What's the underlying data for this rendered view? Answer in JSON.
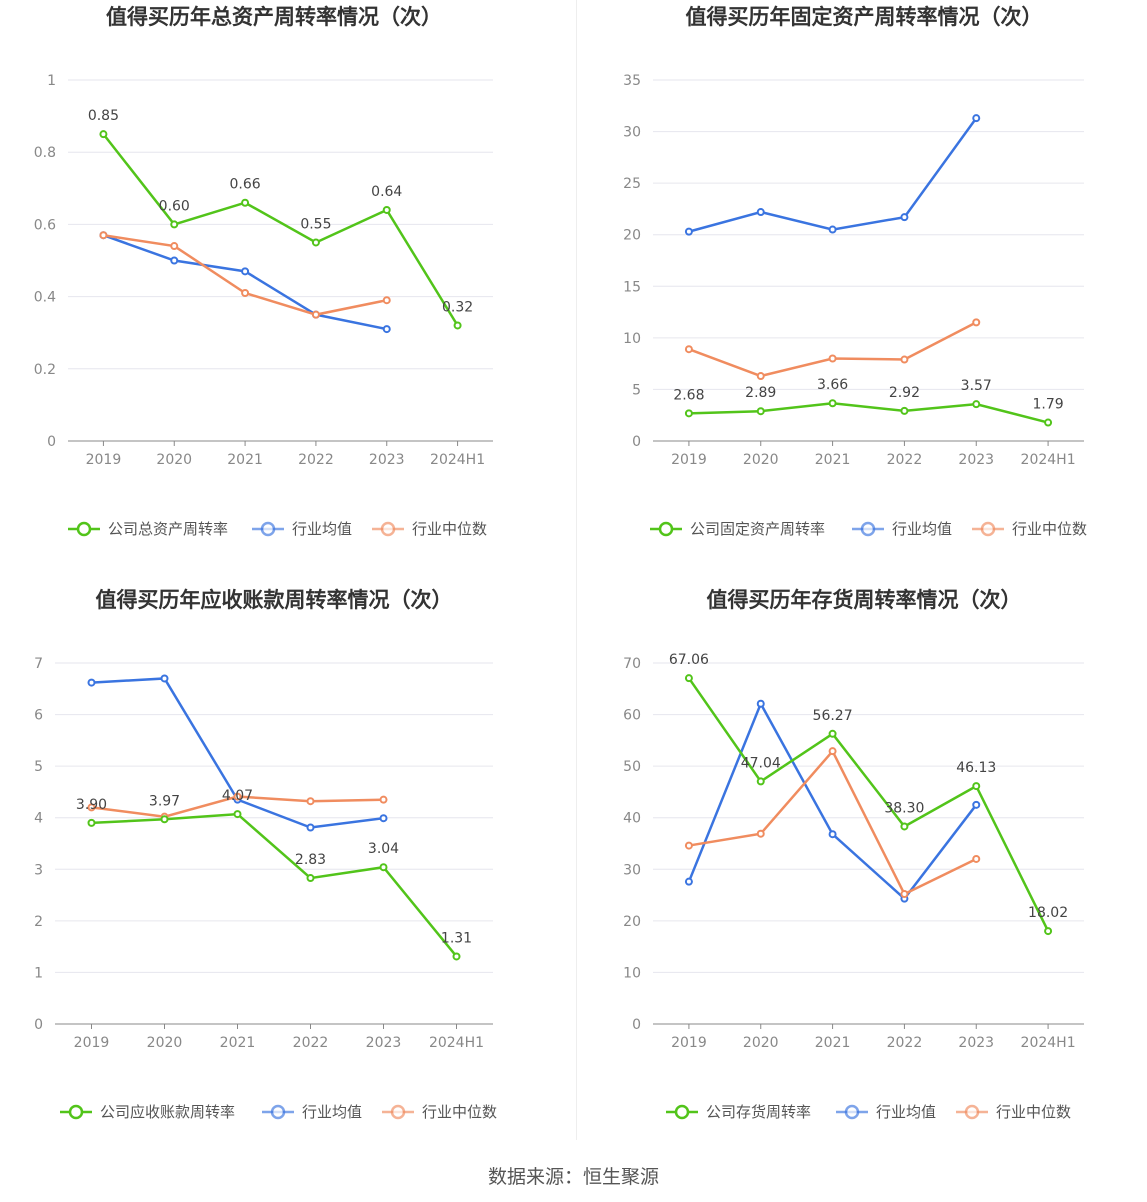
{
  "footer": {
    "source": "数据来源：恒生聚源"
  },
  "chart_data": [
    {
      "type": "line",
      "title": "值得买历年总资产周转率情况（次）",
      "categories": [
        "2019",
        "2020",
        "2021",
        "2022",
        "2023",
        "2024H1"
      ],
      "yticks": [
        "0",
        "0.2",
        "0.4",
        "0.6",
        "0.8",
        "1"
      ],
      "ylim": [
        0,
        1
      ],
      "series": [
        {
          "name": "公司总资产周转率",
          "color": "#52c41a",
          "values": [
            0.85,
            0.6,
            0.66,
            0.55,
            0.64,
            0.32
          ],
          "labels": [
            "0.85",
            "0.60",
            "0.66",
            "0.55",
            "0.64",
            "0.32"
          ]
        },
        {
          "name": "行业均值",
          "color": "#3a74e0",
          "values": [
            0.57,
            0.5,
            0.47,
            0.35,
            0.31,
            null
          ]
        },
        {
          "name": "行业中位数",
          "color": "#f08c5f",
          "values": [
            0.57,
            0.54,
            0.41,
            0.35,
            0.39,
            null
          ]
        }
      ],
      "grid": true,
      "legend": "bottom"
    },
    {
      "type": "line",
      "title": "值得买历年固定资产周转率情况（次）",
      "categories": [
        "2019",
        "2020",
        "2021",
        "2022",
        "2023",
        "2024H1"
      ],
      "yticks": [
        "0",
        "5",
        "10",
        "15",
        "20",
        "25",
        "30",
        "35"
      ],
      "ylim": [
        0,
        35
      ],
      "series": [
        {
          "name": "公司固定资产周转率",
          "color": "#52c41a",
          "values": [
            2.68,
            2.89,
            3.66,
            2.92,
            3.57,
            1.79
          ],
          "labels": [
            "2.68",
            "2.89",
            "3.66",
            "2.92",
            "3.57",
            "1.79"
          ]
        },
        {
          "name": "行业均值",
          "color": "#3a74e0",
          "values": [
            20.3,
            22.2,
            20.5,
            21.7,
            31.3,
            null
          ]
        },
        {
          "name": "行业中位数",
          "color": "#f08c5f",
          "values": [
            8.9,
            6.3,
            8.0,
            7.9,
            11.5,
            null
          ]
        }
      ],
      "grid": true,
      "legend": "bottom"
    },
    {
      "type": "line",
      "title": "值得买历年应收账款周转率情况（次）",
      "categories": [
        "2019",
        "2020",
        "2021",
        "2022",
        "2023",
        "2024H1"
      ],
      "yticks": [
        "0",
        "1",
        "2",
        "3",
        "4",
        "5",
        "6",
        "7"
      ],
      "ylim": [
        0,
        7
      ],
      "series": [
        {
          "name": "公司应收账款周转率",
          "color": "#52c41a",
          "values": [
            3.9,
            3.97,
            4.07,
            2.83,
            3.04,
            1.31
          ],
          "labels": [
            "3.90",
            "3.97",
            "4.07",
            "2.83",
            "3.04",
            "1.31"
          ]
        },
        {
          "name": "行业均值",
          "color": "#3a74e0",
          "values": [
            6.62,
            6.7,
            4.35,
            3.81,
            3.99,
            null
          ]
        },
        {
          "name": "行业中位数",
          "color": "#f08c5f",
          "values": [
            4.2,
            4.02,
            4.41,
            4.32,
            4.35,
            null
          ]
        }
      ],
      "grid": true,
      "legend": "bottom"
    },
    {
      "type": "line",
      "title": "值得买历年存货周转率情况（次）",
      "categories": [
        "2019",
        "2020",
        "2021",
        "2022",
        "2023",
        "2024H1"
      ],
      "yticks": [
        "0",
        "10",
        "20",
        "30",
        "40",
        "50",
        "60",
        "70"
      ],
      "ylim": [
        0,
        70
      ],
      "series": [
        {
          "name": "公司存货周转率",
          "color": "#52c41a",
          "values": [
            67.06,
            47.04,
            56.27,
            38.3,
            46.13,
            18.02
          ],
          "labels": [
            "67.06",
            "47.04",
            "56.27",
            "38.30",
            "46.13",
            "18.02"
          ]
        },
        {
          "name": "行业均值",
          "color": "#3a74e0",
          "values": [
            27.6,
            62.1,
            36.8,
            24.3,
            42.5,
            null
          ]
        },
        {
          "name": "行业中位数",
          "color": "#f08c5f",
          "values": [
            34.6,
            36.9,
            52.9,
            25.2,
            32.0,
            null
          ]
        }
      ],
      "grid": true,
      "legend": "bottom"
    }
  ]
}
